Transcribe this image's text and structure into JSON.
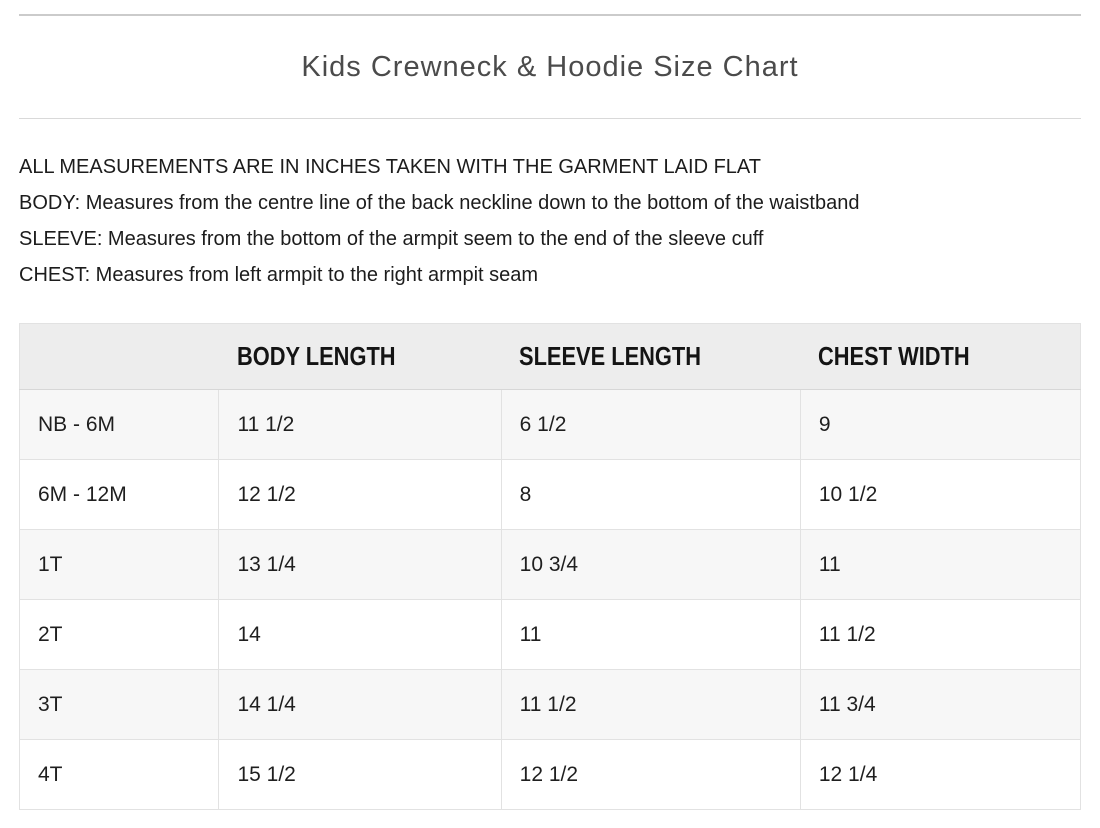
{
  "header": {
    "title": "Kids Crewneck & Hoodie Size Chart"
  },
  "notes": [
    "ALL MEASUREMENTS ARE IN INCHES TAKEN WITH THE GARMENT LAID FLAT",
    "BODY: Measures from the centre line of the back neckline down to the bottom of the waistband",
    "SLEEVE: Measures from the bottom of the armpit seem to the end of the sleeve cuff",
    "CHEST: Measures from left armpit to the right armpit seam"
  ],
  "size_table": {
    "columns": [
      "",
      "BODY LENGTH",
      "SLEEVE LENGTH",
      "CHEST WIDTH"
    ],
    "rows": [
      {
        "size": "NB - 6M",
        "body_length": "11 1/2",
        "sleeve_length": "6 1/2",
        "chest_width": "9"
      },
      {
        "size": "6M - 12M",
        "body_length": "12 1/2",
        "sleeve_length": "8",
        "chest_width": "10 1/2"
      },
      {
        "size": "1T",
        "body_length": "13 1/4",
        "sleeve_length": "10 3/4",
        "chest_width": "11"
      },
      {
        "size": "2T",
        "body_length": "14",
        "sleeve_length": "11",
        "chest_width": "11 1/2"
      },
      {
        "size": "3T",
        "body_length": "14 1/4",
        "sleeve_length": "11 1/2",
        "chest_width": "11 3/4"
      },
      {
        "size": "4T",
        "body_length": "15 1/2",
        "sleeve_length": "12 1/2",
        "chest_width": "12 1/4"
      }
    ]
  },
  "colors": {
    "title_text": "#4b4b4b",
    "note_text": "#1c1c1c",
    "header_row_bg": "#ededed",
    "striped_row_bg": "#f7f7f7",
    "table_border": "#e2e2e2",
    "rule_line": "#cbcbcb"
  }
}
